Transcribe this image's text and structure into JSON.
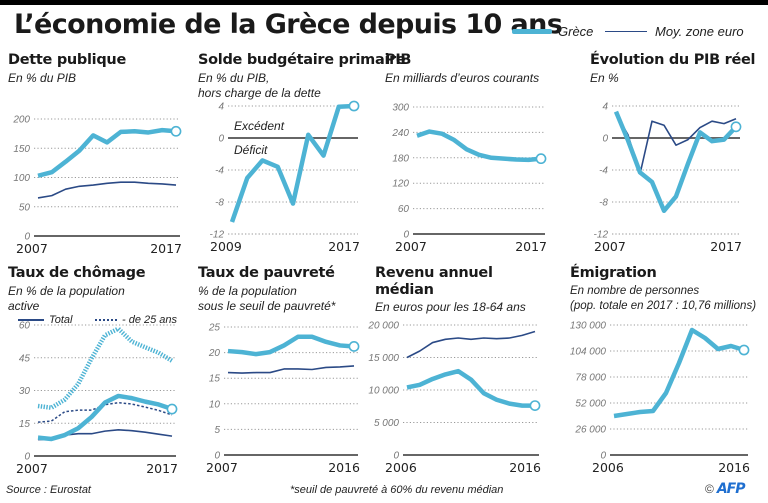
{
  "header": {
    "title": "L’économie de la Grèce depuis 10 ans",
    "legend": [
      {
        "label": "Grèce",
        "color": "#4db3d4"
      },
      {
        "label": "Moy. zone euro",
        "color": "#2b4a86"
      }
    ]
  },
  "footer": {
    "source": "Source : Eurostat",
    "note": "*seuil de pauvreté à 60% du revenu médian",
    "copyright": "©",
    "logo": "AFP"
  },
  "colors": {
    "greece": "#4db3d4",
    "euro": "#2b4a86",
    "axis": "#555555",
    "grid": "#9a9a9a"
  },
  "chart_data": [
    {
      "id": "dette",
      "type": "line",
      "title": "Dette publique",
      "subtitle": "En % du PIB",
      "x": [
        2007,
        2008,
        2009,
        2010,
        2011,
        2012,
        2013,
        2014,
        2015,
        2016,
        2017
      ],
      "xtick_labels": [
        "2007",
        "2017"
      ],
      "ylim": [
        0,
        200
      ],
      "yticks": [
        0,
        50,
        100,
        150,
        200
      ],
      "ytick_labels": [
        "0",
        "50",
        "100",
        "150",
        "200"
      ],
      "grid": true,
      "series": [
        {
          "name": "Grèce",
          "values": [
            103,
            109,
            127,
            146,
            172,
            160,
            178,
            179,
            177,
            181,
            179
          ]
        },
        {
          "name": "Moy. zone euro",
          "values": [
            65,
            69,
            80,
            85,
            87,
            90,
            92,
            92,
            90,
            89,
            87
          ]
        }
      ]
    },
    {
      "id": "solde",
      "type": "line",
      "title": "Solde budgétaire primaire",
      "subtitle": "En % du PIB,\nhors charge de la dette",
      "x": [
        2009,
        2010,
        2011,
        2012,
        2013,
        2014,
        2015,
        2016,
        2017
      ],
      "xtick_labels": [
        "2009",
        "2017"
      ],
      "ylim": [
        -12,
        4
      ],
      "yticks": [
        -12,
        -8,
        -4,
        0,
        4
      ],
      "ytick_labels": [
        "-12",
        "-8",
        "-4",
        "0",
        "4"
      ],
      "grid": true,
      "annotations": [
        "Excédent",
        "Déficit"
      ],
      "series": [
        {
          "name": "Grèce",
          "values": [
            -10.5,
            -5.0,
            -2.8,
            -3.6,
            -8.2,
            0.4,
            -2.2,
            3.9,
            4.0
          ]
        }
      ]
    },
    {
      "id": "pib",
      "type": "line",
      "title": "PIB",
      "subtitle": "En milliards d’euros courants",
      "x": [
        2007,
        2008,
        2009,
        2010,
        2011,
        2012,
        2013,
        2014,
        2015,
        2016,
        2017
      ],
      "xtick_labels": [
        "2007",
        "2017"
      ],
      "ylim": [
        0,
        300
      ],
      "yticks": [
        0,
        60,
        120,
        180,
        240,
        300
      ],
      "ytick_labels": [
        "0",
        "60",
        "120",
        "180",
        "240",
        "300"
      ],
      "grid": true,
      "series": [
        {
          "name": "Grèce",
          "values": [
            232,
            242,
            237,
            222,
            200,
            187,
            180,
            178,
            176,
            175,
            178
          ]
        }
      ]
    },
    {
      "id": "pibreel",
      "type": "line",
      "title": "Évolution du PIB réel",
      "subtitle": "En %",
      "x": [
        2007,
        2008,
        2009,
        2010,
        2011,
        2012,
        2013,
        2014,
        2015,
        2016,
        2017
      ],
      "xtick_labels": [
        "2007",
        "2017"
      ],
      "ylim": [
        -12,
        4
      ],
      "yticks": [
        -12,
        -8,
        -4,
        0,
        4
      ],
      "ytick_labels": [
        "-12",
        "-8",
        "-4",
        "0",
        "4"
      ],
      "grid": true,
      "series": [
        {
          "name": "Grèce",
          "values": [
            3.3,
            -0.3,
            -4.3,
            -5.5,
            -9.1,
            -7.3,
            -3.2,
            0.7,
            -0.4,
            -0.2,
            1.4
          ]
        },
        {
          "name": "Moy. zone euro",
          "values": [
            3.0,
            0.4,
            -4.5,
            2.1,
            1.6,
            -0.9,
            -0.2,
            1.3,
            2.1,
            1.8,
            2.4
          ]
        }
      ]
    },
    {
      "id": "chomage",
      "type": "line",
      "title": "Taux de chômage",
      "subtitle": "En % de la population\nactive",
      "sublegend": [
        {
          "label": "Total",
          "style": "solid"
        },
        {
          "label": "- de 25 ans",
          "style": "dotted"
        }
      ],
      "x": [
        2007,
        2008,
        2009,
        2010,
        2011,
        2012,
        2013,
        2014,
        2015,
        2016,
        2017
      ],
      "xtick_labels": [
        "2007",
        "2017"
      ],
      "ylim": [
        0,
        60
      ],
      "yticks": [
        0,
        15,
        30,
        45,
        60
      ],
      "ytick_labels": [
        "0",
        "15",
        "30",
        "45",
        "60"
      ],
      "grid": true,
      "series": [
        {
          "name": "Grèce - de 25 ans",
          "style": "dotted",
          "values": [
            22.9,
            22.1,
            25.8,
            33.0,
            44.7,
            55.3,
            58.3,
            52.4,
            49.8,
            47.3,
            43.6
          ]
        },
        {
          "name": "Moy. zone euro - de 25 ans",
          "style": "dotted",
          "values": [
            15.5,
            16.0,
            20.3,
            21.0,
            21.0,
            23.5,
            24.4,
            23.8,
            22.4,
            20.9,
            18.8
          ]
        },
        {
          "name": "Grèce Total",
          "style": "solid",
          "values": [
            8.4,
            7.8,
            9.6,
            12.7,
            17.9,
            24.5,
            27.5,
            26.5,
            24.9,
            23.6,
            21.5
          ]
        },
        {
          "name": "Moy. zone euro Total",
          "style": "solid",
          "values": [
            7.5,
            7.6,
            9.6,
            10.2,
            10.2,
            11.4,
            12.0,
            11.6,
            10.9,
            10.0,
            9.1
          ]
        }
      ]
    },
    {
      "id": "pauvrete",
      "type": "line",
      "title": "Taux de pauvreté",
      "subtitle": "% de la population\nsous le seuil de pauvreté*",
      "x": [
        2007,
        2008,
        2009,
        2010,
        2011,
        2012,
        2013,
        2014,
        2015,
        2016
      ],
      "xtick_labels": [
        "2007",
        "2016"
      ],
      "ylim": [
        0,
        25
      ],
      "yticks": [
        0,
        5,
        10,
        15,
        20,
        25
      ],
      "ytick_labels": [
        "0",
        "5",
        "10",
        "15",
        "20",
        "25"
      ],
      "grid": true,
      "series": [
        {
          "name": "Grèce",
          "values": [
            20.3,
            20.1,
            19.7,
            20.1,
            21.4,
            23.1,
            23.1,
            22.1,
            21.4,
            21.2
          ]
        },
        {
          "name": "Moy. zone euro",
          "values": [
            16.1,
            16.0,
            16.1,
            16.1,
            16.8,
            16.8,
            16.7,
            17.1,
            17.2,
            17.4
          ]
        }
      ]
    },
    {
      "id": "revenu",
      "type": "line",
      "title": "Revenu annuel\nmédian",
      "subtitle": "En euros pour les 18-64 ans",
      "x": [
        2006,
        2007,
        2008,
        2009,
        2010,
        2011,
        2012,
        2013,
        2014,
        2015,
        2016
      ],
      "xtick_labels": [
        "2006",
        "2016"
      ],
      "ylim": [
        0,
        20000
      ],
      "yticks": [
        0,
        5000,
        10000,
        15000,
        20000
      ],
      "ytick_labels": [
        "0",
        "5 000",
        "10 000",
        "15 000",
        "20 000"
      ],
      "grid": true,
      "series": [
        {
          "name": "Grèce",
          "values": [
            10400,
            10800,
            11700,
            12400,
            12900,
            11600,
            9500,
            8500,
            7900,
            7600,
            7600
          ]
        },
        {
          "name": "Moy. zone euro",
          "values": [
            15000,
            16000,
            17300,
            17800,
            18000,
            17800,
            18000,
            17900,
            18000,
            18400,
            19000
          ]
        }
      ]
    },
    {
      "id": "emigration",
      "type": "line",
      "title": "Émigration",
      "subtitle": "En nombre de personnes\n(pop. totale en 2017 : 10,76 millions)",
      "x": [
        2006,
        2007,
        2008,
        2009,
        2010,
        2011,
        2012,
        2013,
        2014,
        2015,
        2016
      ],
      "xtick_labels": [
        "2006",
        "2016"
      ],
      "ylim": [
        0,
        130000
      ],
      "yticks": [
        0,
        26000,
        52000,
        78000,
        104000,
        130000
      ],
      "ytick_labels": [
        "0",
        "26 000",
        "52 000",
        "78 000",
        "104 000",
        "130 000"
      ],
      "grid": true,
      "series": [
        {
          "name": "Grèce",
          "values": [
            39000,
            41000,
            43000,
            44000,
            62000,
            92000,
            125000,
            117000,
            106000,
            109000,
            105000
          ]
        }
      ]
    }
  ]
}
